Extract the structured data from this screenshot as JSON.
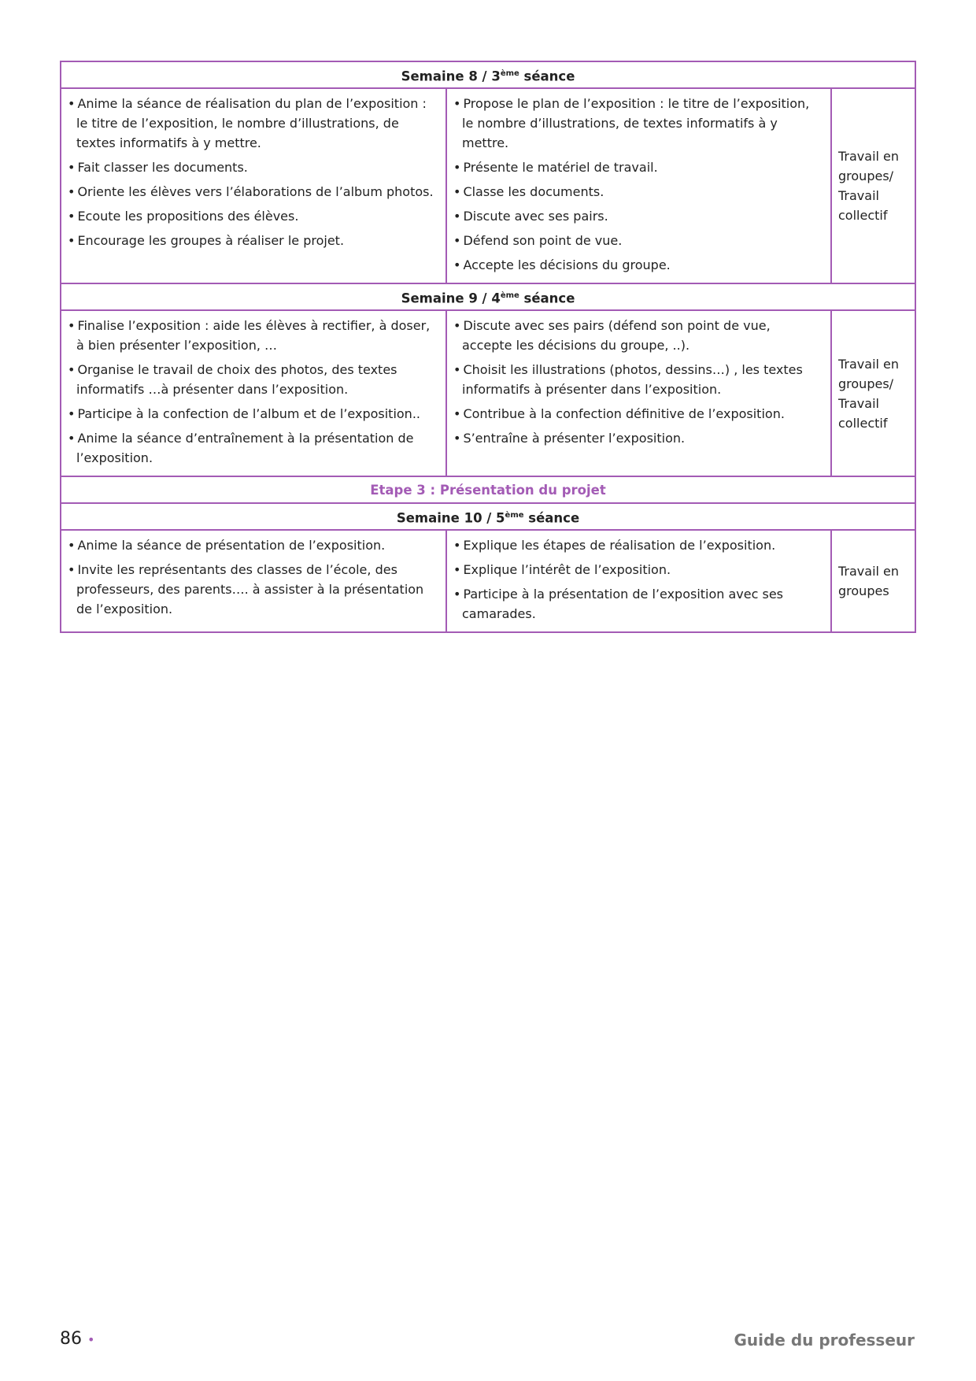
{
  "sections": [
    {
      "header": {
        "pre": "Semaine 8 / 3",
        "sup": "ème",
        "post": " séance"
      },
      "teacher": [
        "Anime la séance de réalisation du plan de l’exposition : le titre de l’exposition, le nombre d’illustrations, de textes informatifs à y mettre.",
        "Fait classer les documents.",
        "Oriente les élèves vers l’élaborations de l’album photos.",
        "Ecoute les propositions des élèves.",
        "Encourage les groupes à réaliser le projet."
      ],
      "students": [
        "Propose le plan de l’exposition : le titre de l’exposition, le nombre d’illustrations, de textes informatifs à y mettre.",
        "Présente le matériel de travail.",
        "Classe les documents.",
        "Discute avec ses pairs.",
        "Défend son point de vue.",
        "Accepte les décisions du groupe."
      ],
      "mode": "Travail en groupes/ Travail collectif"
    },
    {
      "header": {
        "pre": "Semaine 9 / 4",
        "sup": "ème",
        "post": " séance"
      },
      "teacher": [
        "Finalise l’exposition : aide les élèves à rectifier, à doser, à bien présenter l’exposition, …",
        "Organise le travail de choix des photos, des textes informatifs …à présenter dans l’exposition.",
        "Participe à la confection de l’album et de l’exposition..",
        "Anime la séance d’entraînement à la présentation de l’exposition."
      ],
      "students": [
        "Discute avec ses pairs (défend son point de vue, accepte les décisions du groupe, ..).",
        "Choisit les illustrations (photos, dessins…) , les textes informatifs à présenter dans l’exposition.",
        "Contribue à la confection définitive de l’exposition.",
        "S’entraîne à présenter l’exposition."
      ],
      "mode": "Travail en groupes/ Travail collectif"
    },
    {
      "step": "Etape 3 : Présentation du projet",
      "header": {
        "pre": "Semaine 10 / 5",
        "sup": "ème",
        "post": " séance"
      },
      "teacher": [
        "Anime la séance de présentation de l’exposition.",
        "Invite les représentants des classes de l’école, des professeurs, des parents…. à assister à la présentation de l’exposition."
      ],
      "students": [
        "Explique les étapes de réalisation de l’exposition.",
        "Explique l’intérêt de l’exposition.",
        "Participe à la présentation de l’exposition avec ses camarades."
      ],
      "mode": "Travail en groupes"
    }
  ],
  "footer": {
    "page_number": "86",
    "title": "Guide du professeur"
  },
  "colors": {
    "accent": "#a35bb5",
    "footer_text": "#777777"
  }
}
